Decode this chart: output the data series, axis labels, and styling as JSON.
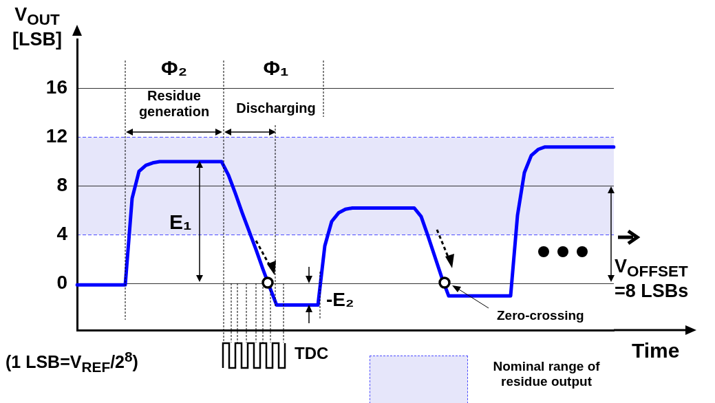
{
  "chart_data": {
    "type": "line",
    "ylabel": "V$_{OUT}$ [LSB]",
    "xlabel": "Time",
    "categories": [
      null,
      null,
      null,
      null,
      null,
      null,
      null,
      null,
      null,
      null,
      null,
      null,
      null,
      null,
      null,
      null,
      null,
      null,
      null,
      null,
      null,
      null,
      null,
      null,
      null,
      null,
      null,
      null,
      null,
      null,
      null,
      null,
      null,
      null,
      null,
      null,
      null,
      null,
      null,
      null,
      null,
      null,
      null,
      null,
      null,
      null,
      null,
      null,
      null,
      null,
      null,
      null,
      null,
      null,
      null,
      null,
      null,
      null,
      null,
      null,
      null,
      null,
      null,
      null,
      null,
      null,
      null,
      null,
      null,
      null,
      null,
      null,
      null,
      null,
      null,
      null,
      null,
      null,
      null
    ],
    "series": [
      {
        "color": "#0000ff",
        "values": [
          -0.1,
          -0.1,
          -0.1,
          -0.1,
          -0.1,
          -0.1,
          -0.1,
          -0.1,
          7,
          9.2,
          9.7,
          9.9,
          10,
          10,
          10,
          10,
          10,
          10,
          10,
          10,
          10,
          10,
          8.9,
          7.4,
          5.8,
          4.3,
          2.8,
          1.2,
          -0.3,
          -1.75,
          -1.75,
          -1.75,
          -1.75,
          -1.75,
          -1.75,
          -1.75,
          3.1,
          5.1,
          5.8,
          6.1,
          6.2,
          6.2,
          6.2,
          6.2,
          6.2,
          6.2,
          6.2,
          6.2,
          6.2,
          6.2,
          5.5,
          3.9,
          2.2,
          0.5,
          -1,
          -1,
          -1,
          -1,
          -1,
          -1,
          -1,
          -1,
          -1,
          -1,
          5.6,
          9.1,
          10.5,
          11,
          11.2,
          11.2,
          11.2,
          11.2,
          11.2,
          11.2,
          11.2,
          11.2,
          11.2,
          11.2,
          11.2
        ]
      }
    ],
    "ylim": [
      -3.8,
      20
    ],
    "yticks": [
      0,
      4,
      8,
      12,
      16
    ],
    "tick_labels": "y",
    "grid": "y",
    "marker": "none",
    "line_style": "solid",
    "bands": [
      {
        "axis": "y",
        "from": 4,
        "to": 12,
        "color": "#e6e6fa"
      }
    ],
    "annotations": [
      "Φ₂",
      "Φ₁",
      "Residue generation",
      "Discharging",
      "E₁",
      "-E₂",
      "V$_{OFFSET}$ =8 LSBs",
      "Zero-crossing",
      "TDC",
      "(1 LSB=V$_{REF}$/2$^{8}$)",
      "Nominal range of residue output"
    ]
  }
}
